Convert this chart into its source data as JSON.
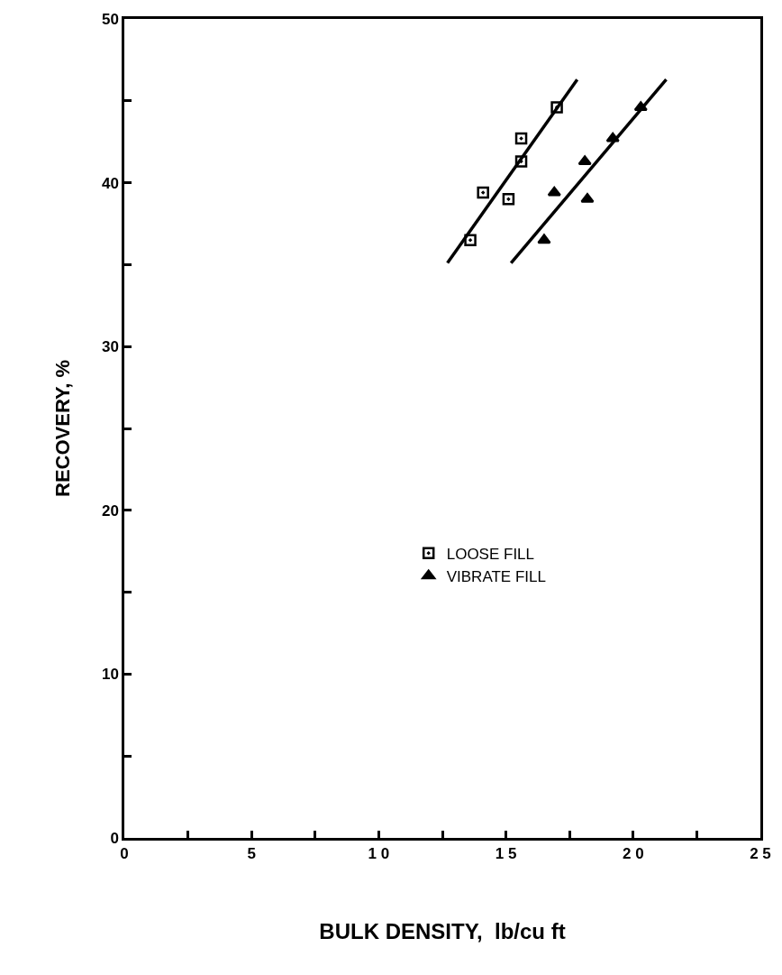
{
  "chart_data": {
    "type": "scatter",
    "xlabel": "BULK DENSITY,  lb/cu ft",
    "ylabel": "RECOVERY, %",
    "xlim": [
      0,
      25
    ],
    "ylim": [
      0,
      50
    ],
    "xticks": [
      0,
      {
        "value": 2.5,
        "label": null
      },
      5,
      {
        "value": 7.5,
        "label": null
      },
      {
        "value": 10,
        "label": "1 0"
      },
      {
        "value": 12.5,
        "label": null
      },
      {
        "value": 15,
        "label": "1 5"
      },
      {
        "value": 17.5,
        "label": null
      },
      {
        "value": 20,
        "label": "2 0"
      },
      {
        "value": 22.5,
        "label": null
      },
      {
        "value": 25,
        "label": "2 5"
      }
    ],
    "yticks": [
      0,
      {
        "value": 5,
        "label": null
      },
      10,
      {
        "value": 15,
        "label": null
      },
      20,
      {
        "value": 25,
        "label": null
      },
      30,
      {
        "value": 35,
        "label": null
      },
      40,
      {
        "value": 45,
        "label": null
      },
      50
    ],
    "legend": "center",
    "series": [
      {
        "name": "LOOSE FILL",
        "color": "#000000",
        "marker": "square",
        "x": [
          13.6,
          14.1,
          15.1,
          15.6,
          15.6,
          17.0
        ],
        "values": [
          36.5,
          39.4,
          39.0,
          41.3,
          42.7,
          44.6
        ]
      },
      {
        "name": "VIBRATE FILL",
        "color": "#000000",
        "marker": "triangle",
        "x": [
          16.5,
          16.9,
          18.2,
          18.1,
          19.2,
          20.3
        ],
        "values": [
          36.5,
          39.4,
          39.0,
          41.3,
          42.7,
          44.6
        ]
      },
      {
        "type": "line",
        "color": "#000000",
        "marker": "none",
        "line_style": "solid",
        "x": [
          12.7,
          17.8
        ],
        "values": [
          35.1,
          46.3
        ]
      },
      {
        "type": "line",
        "color": "#000000",
        "marker": "none",
        "line_style": "solid",
        "x": [
          15.2,
          21.3
        ],
        "values": [
          35.1,
          46.3
        ]
      }
    ]
  }
}
